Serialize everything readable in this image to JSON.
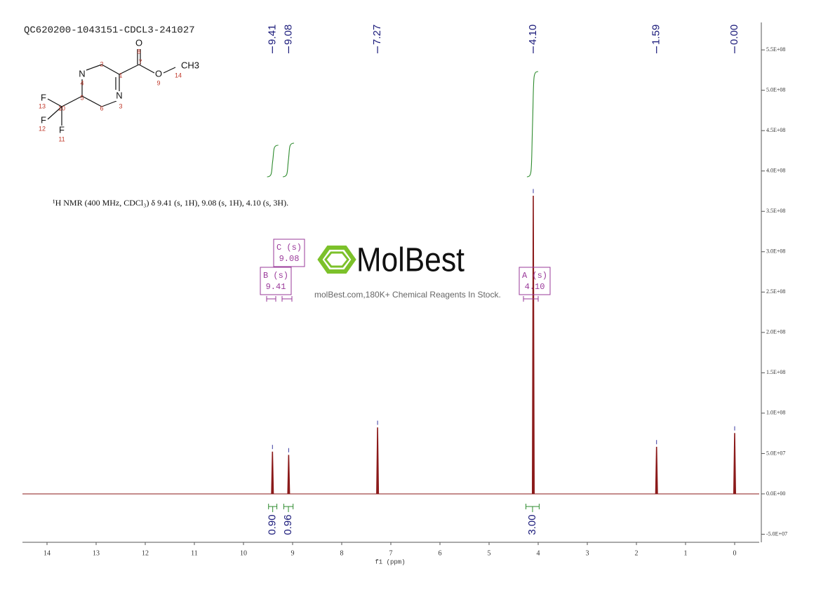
{
  "chart_data": {
    "type": "nmr",
    "title": "QC620200-1043151-CDCL3-241027",
    "x_label": "f1 (ppm)",
    "xlim": [
      14.5,
      -0.5
    ],
    "xticks": [
      14,
      13,
      12,
      11,
      10,
      9,
      8,
      7,
      6,
      5,
      4,
      3,
      2,
      1,
      0
    ],
    "ylim": [
      -60000000,
      584000000
    ],
    "yticks": [
      {
        "value": 550000000,
        "label": "5.5E+08"
      },
      {
        "value": 500000000,
        "label": "5.0E+08"
      },
      {
        "value": 450000000,
        "label": "4.5E+08"
      },
      {
        "value": 400000000,
        "label": "4.0E+08"
      },
      {
        "value": 350000000,
        "label": "3.5E+08"
      },
      {
        "value": 300000000,
        "label": "3.0E+08"
      },
      {
        "value": 250000000,
        "label": "2.5E+08"
      },
      {
        "value": 200000000,
        "label": "2.0E+08"
      },
      {
        "value": 150000000,
        "label": "1.5E+08"
      },
      {
        "value": 100000000,
        "label": "1.0E+08"
      },
      {
        "value": 50000000,
        "label": "5.0E+07"
      },
      {
        "value": 0,
        "label": "0.0E+00"
      },
      {
        "value": -50000000,
        "label": "-5.0E+07"
      }
    ],
    "color": "#8b1a1a",
    "x": [
      9.41,
      9.08,
      7.27,
      4.1,
      1.59,
      0.0
    ],
    "x_labels": [
      "9.41",
      "9.08",
      "7.27",
      "4.10",
      "1.59",
      "0.00"
    ],
    "values": [
      52000000,
      48000000,
      82000000,
      369000000,
      58000000,
      75000000
    ],
    "integrals": {
      "ranges": [
        [
          9.49,
          9.32
        ],
        [
          9.18,
          8.99
        ],
        [
          4.25,
          3.98
        ]
      ],
      "values": [
        0.9,
        0.96,
        3
      ],
      "value_labels": [
        "0.90",
        "0.96",
        "3.00"
      ],
      "color": "#2e8b2e"
    },
    "multiplets": [
      {
        "name": "B (s)",
        "shift": "9.41"
      },
      {
        "name": "C (s)",
        "shift": "9.08"
      },
      {
        "name": "A (s)",
        "shift": "4.10"
      }
    ],
    "annotation": "¹H NMR (400 MHz, CDCl₃) δ 9.41 (s, 1H), 9.08 (s, 1H), 4.10 (s, 3H).",
    "watermark": {
      "brand": "MolBest",
      "tagline": "molBest.com,180K+ Chemical Reagents In Stock."
    },
    "structure": {
      "atoms": [
        {
          "label": "O",
          "number": "8"
        },
        {
          "label": "",
          "number": "7"
        },
        {
          "label": "O",
          "number": "9"
        },
        {
          "label": "CH3",
          "number": "14"
        },
        {
          "label": "",
          "number": "1"
        },
        {
          "label": "",
          "number": "2"
        },
        {
          "label": "N",
          "number": "4"
        },
        {
          "label": "N",
          "number": "3"
        },
        {
          "label": "",
          "number": "5"
        },
        {
          "label": "",
          "number": "6"
        },
        {
          "label": "",
          "number": "10"
        },
        {
          "label": "F",
          "number": "13"
        },
        {
          "label": "F",
          "number": "12"
        },
        {
          "label": "F",
          "number": "11"
        }
      ]
    }
  }
}
